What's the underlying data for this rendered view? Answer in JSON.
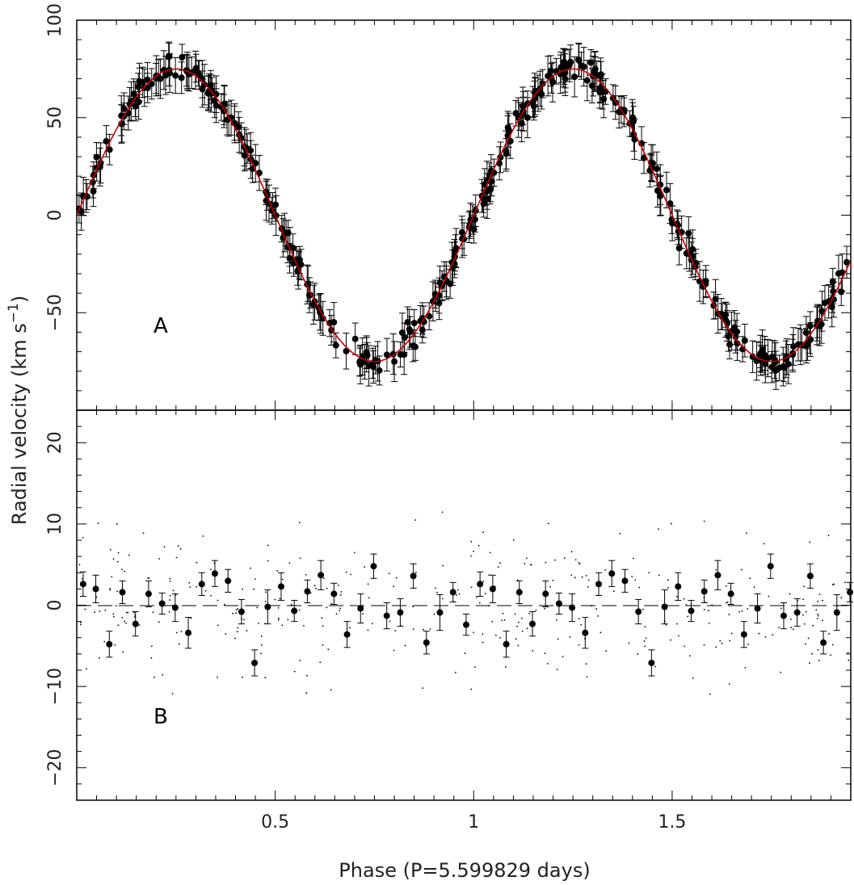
{
  "chart_data": {
    "type": "scatter",
    "xlabel": "Phase (P=5.599829 days)",
    "ylabel": "Radial velocity (km s",
    "ylabel_sup": "−1",
    "ylabel_close": ")",
    "x_ticks": [
      "0.5",
      "1",
      "1.5"
    ],
    "xlim": [
      0,
      1.95
    ],
    "grid": false,
    "panels": [
      {
        "id": "A",
        "label": "A",
        "ylim": [
          -100,
          100
        ],
        "y_ticks": [
          "100",
          "50",
          "0",
          "−50"
        ],
        "model": {
          "name": "sinusoid",
          "amplitude": 75,
          "offset": 0,
          "period_phase": 1,
          "color": "#cc0000"
        },
        "series": {
          "marker": "filled-circle",
          "color": "#000000",
          "n_points": 380,
          "scatter_kms": 7,
          "errorbar_kms": 8
        }
      },
      {
        "id": "B",
        "label": "B",
        "ylim": [
          -24,
          24
        ],
        "y_ticks": [
          "20",
          "10",
          "0",
          "−10",
          "−20"
        ],
        "zero_line": "dashed",
        "binned_residuals": {
          "x": [
            0.016,
            0.048,
            0.082,
            0.115,
            0.148,
            0.181,
            0.215,
            0.248,
            0.281,
            0.315,
            0.348,
            0.381,
            0.415,
            0.448,
            0.481,
            0.515,
            0.548,
            0.581,
            0.615,
            0.648,
            0.681,
            0.715,
            0.748,
            0.781,
            0.815,
            0.848,
            0.881,
            0.915,
            0.948,
            0.981,
            1.016,
            1.048,
            1.082,
            1.115,
            1.148,
            1.181,
            1.215,
            1.248,
            1.281,
            1.315,
            1.348,
            1.381,
            1.415,
            1.448,
            1.481,
            1.515,
            1.548,
            1.581,
            1.615,
            1.648,
            1.681,
            1.715,
            1.748,
            1.781,
            1.815,
            1.848,
            1.881,
            1.915,
            1.948
          ],
          "y": [
            2.6,
            2.0,
            -4.8,
            1.6,
            -2.3,
            1.4,
            0.2,
            -0.3,
            -3.4,
            2.6,
            3.9,
            3.0,
            -0.8,
            -7.1,
            -0.2,
            2.3,
            -0.7,
            1.7,
            3.7,
            1.4,
            -3.6,
            -0.4,
            4.8,
            -1.3,
            -0.9,
            3.6,
            -4.6,
            -0.9,
            1.6,
            -2.4,
            2.6,
            2.0,
            -4.8,
            1.6,
            -2.3,
            1.4,
            0.2,
            -0.3,
            -3.4,
            2.6,
            3.9,
            3.0,
            -0.8,
            -7.1,
            -0.2,
            2.3,
            -0.7,
            1.7,
            3.7,
            1.4,
            -3.6,
            -0.4,
            4.8,
            -1.3,
            -0.9,
            3.6,
            -4.6,
            -0.9,
            1.6
          ],
          "err": [
            1.5,
            1.7,
            1.6,
            1.4,
            1.5,
            1.6,
            1.3,
            1.7,
            1.9,
            1.4,
            1.6,
            1.4,
            1.5,
            1.6,
            2.1,
            1.7,
            1.3,
            1.4,
            1.8,
            1.3,
            1.6,
            1.8,
            1.5,
            1.6,
            1.7,
            1.5,
            1.4,
            2.2,
            1.2,
            1.3,
            1.5,
            1.7,
            1.6,
            1.4,
            1.5,
            1.6,
            1.3,
            1.7,
            1.9,
            1.4,
            1.6,
            1.4,
            1.5,
            1.6,
            2.1,
            1.7,
            1.3,
            1.4,
            1.8,
            1.3,
            1.6,
            1.8,
            1.5,
            1.6,
            1.7,
            1.5,
            1.4,
            2.2,
            1.2
          ]
        },
        "individual_residuals": {
          "marker": "dot",
          "n_points": 380,
          "scatter_kms": 7
        }
      }
    ]
  }
}
